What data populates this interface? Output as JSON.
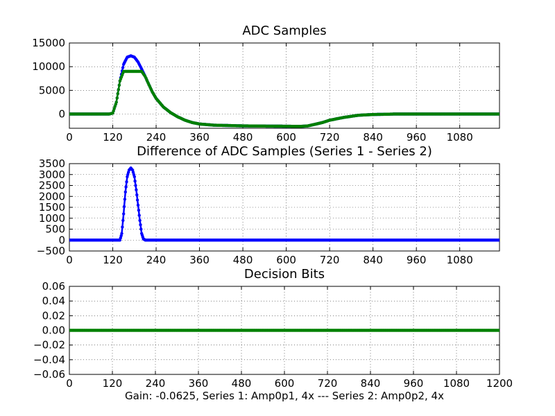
{
  "caption": "Gain: -0.0625, Series 1: Amp0p1, 4x --- Series 2: Amp0p2, 4x",
  "chart_data": [
    {
      "type": "scatter",
      "title": "ADC Samples",
      "xlabel": "",
      "ylabel": "",
      "xlim": [
        0,
        1190
      ],
      "ylim": [
        -3000,
        15000
      ],
      "xticks": [
        0,
        120,
        240,
        360,
        480,
        600,
        720,
        840,
        960,
        1080
      ],
      "yticks": [
        0,
        5000,
        10000,
        15000
      ],
      "grid": true,
      "series": [
        {
          "color": "#0000ff",
          "points": [
            [
              0,
              0
            ],
            [
              110,
              0
            ],
            [
              120,
              200
            ],
            [
              130,
              2500
            ],
            [
              140,
              7000
            ],
            [
              150,
              10500
            ],
            [
              160,
              12000
            ],
            [
              170,
              12300
            ],
            [
              180,
              12000
            ],
            [
              190,
              11000
            ],
            [
              200,
              9500
            ],
            [
              210,
              7900
            ],
            [
              220,
              6200
            ],
            [
              230,
              4600
            ],
            [
              240,
              3300
            ],
            [
              260,
              1500
            ],
            [
              280,
              300
            ],
            [
              300,
              -600
            ],
            [
              320,
              -1300
            ],
            [
              340,
              -1800
            ],
            [
              360,
              -2100
            ],
            [
              400,
              -2350
            ],
            [
              480,
              -2500
            ],
            [
              560,
              -2550
            ],
            [
              640,
              -2600
            ],
            [
              660,
              -2500
            ],
            [
              680,
              -2150
            ],
            [
              700,
              -1800
            ],
            [
              720,
              -1300
            ],
            [
              760,
              -700
            ],
            [
              800,
              -250
            ],
            [
              840,
              -100
            ],
            [
              900,
              0
            ],
            [
              1190,
              0
            ]
          ]
        },
        {
          "color": "#008000",
          "points": [
            [
              0,
              0
            ],
            [
              110,
              0
            ],
            [
              120,
              200
            ],
            [
              130,
              2500
            ],
            [
              140,
              7000
            ],
            [
              150,
              9000
            ],
            [
              160,
              9000
            ],
            [
              200,
              9000
            ],
            [
              210,
              7900
            ],
            [
              220,
              6200
            ],
            [
              230,
              4600
            ],
            [
              240,
              3300
            ],
            [
              260,
              1500
            ],
            [
              280,
              300
            ],
            [
              300,
              -600
            ],
            [
              320,
              -1300
            ],
            [
              340,
              -1800
            ],
            [
              360,
              -2100
            ],
            [
              400,
              -2350
            ],
            [
              480,
              -2500
            ],
            [
              560,
              -2550
            ],
            [
              640,
              -2600
            ],
            [
              660,
              -2500
            ],
            [
              680,
              -2150
            ],
            [
              700,
              -1800
            ],
            [
              720,
              -1300
            ],
            [
              760,
              -700
            ],
            [
              800,
              -250
            ],
            [
              840,
              -100
            ],
            [
              900,
              0
            ],
            [
              1190,
              0
            ]
          ]
        }
      ]
    },
    {
      "type": "scatter",
      "title": "Difference of ADC Samples (Series 1 - Series 2)",
      "xlabel": "",
      "ylabel": "",
      "xlim": [
        0,
        1190
      ],
      "ylim": [
        -500,
        3500
      ],
      "xticks": [
        0,
        120,
        240,
        360,
        480,
        600,
        720,
        840,
        960,
        1080
      ],
      "yticks": [
        -500,
        0,
        500,
        1000,
        1500,
        2000,
        2500,
        3000,
        3500
      ],
      "grid": true,
      "series": [
        {
          "color": "#0000ff",
          "points": [
            [
              0,
              0
            ],
            [
              130,
              0
            ],
            [
              140,
              0
            ],
            [
              145,
              300
            ],
            [
              150,
              1200
            ],
            [
              155,
              2200
            ],
            [
              160,
              2900
            ],
            [
              165,
              3200
            ],
            [
              170,
              3300
            ],
            [
              175,
              3200
            ],
            [
              180,
              2900
            ],
            [
              185,
              2300
            ],
            [
              190,
              1600
            ],
            [
              195,
              900
            ],
            [
              200,
              300
            ],
            [
              205,
              50
            ],
            [
              210,
              0
            ],
            [
              240,
              0
            ],
            [
              1190,
              0
            ]
          ]
        }
      ]
    },
    {
      "type": "scatter",
      "title": "Decision Bits",
      "xlabel": "",
      "ylabel": "",
      "xlim": [
        0,
        1200
      ],
      "ylim": [
        -0.06,
        0.06
      ],
      "xticks": [
        0,
        120,
        240,
        360,
        480,
        600,
        720,
        840,
        960,
        1080,
        1200
      ],
      "yticks": [
        -0.06,
        -0.04,
        -0.02,
        0.0,
        0.02,
        0.04,
        0.06
      ],
      "ytick_labels": [
        "−0.06",
        "−0.04",
        "−0.02",
        "0.00",
        "0.02",
        "0.04",
        "0.06"
      ],
      "grid": true,
      "series": [
        {
          "color": "#008000",
          "points": [
            [
              0,
              0
            ],
            [
              1200,
              0
            ]
          ]
        }
      ]
    }
  ]
}
